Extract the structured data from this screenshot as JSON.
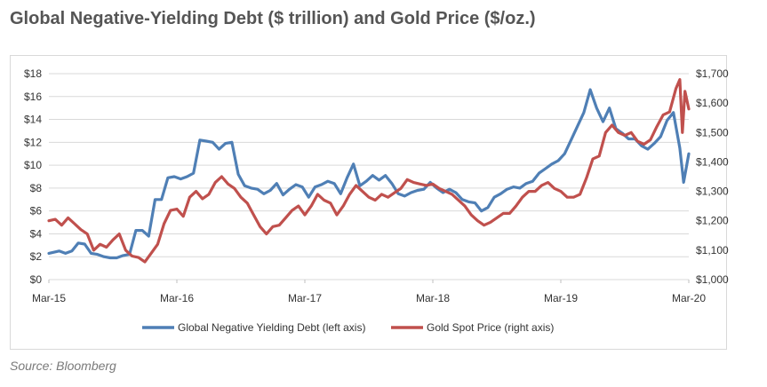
{
  "title": "Global Negative-Yielding Debt ($ trillion) and Gold Price ($/oz.)",
  "source": "Source: Bloomberg",
  "colors": {
    "debt": "#4f7fb5",
    "gold": "#c0504d",
    "grid": "#d9d9d9"
  },
  "chart_data": {
    "type": "line",
    "title": "Global Negative-Yielding Debt ($ trillion) and Gold Price ($/oz.)",
    "x_ticks": [
      "Mar-15",
      "Mar-16",
      "Mar-17",
      "Mar-18",
      "Mar-19",
      "Mar-20"
    ],
    "x_range": [
      2015.17,
      2020.17
    ],
    "left_axis": {
      "label": "",
      "min": 0,
      "max": 18,
      "step": 2,
      "tick_labels": [
        "$0",
        "$2",
        "$4",
        "$6",
        "$8",
        "$10",
        "$12",
        "$14",
        "$16",
        "$18"
      ]
    },
    "right_axis": {
      "label": "",
      "min": 1000,
      "max": 1700,
      "step": 100,
      "tick_labels": [
        "$1,000",
        "$1,100",
        "$1,200",
        "$1,300",
        "$1,400",
        "$1,500",
        "$1,600",
        "$1,700"
      ]
    },
    "grid": true,
    "legend_position": "bottom",
    "series": [
      {
        "name": "Global Negative Yielding Debt (left axis)",
        "axis": "left",
        "x": [
          2015.17,
          2015.25,
          2015.3,
          2015.35,
          2015.4,
          2015.45,
          2015.5,
          2015.55,
          2015.6,
          2015.65,
          2015.7,
          2015.75,
          2015.8,
          2015.85,
          2015.9,
          2015.95,
          2016.0,
          2016.05,
          2016.1,
          2016.15,
          2016.2,
          2016.25,
          2016.3,
          2016.35,
          2016.4,
          2016.45,
          2016.5,
          2016.55,
          2016.6,
          2016.65,
          2016.7,
          2016.75,
          2016.8,
          2016.85,
          2016.9,
          2016.95,
          2017.0,
          2017.05,
          2017.1,
          2017.15,
          2017.2,
          2017.25,
          2017.3,
          2017.35,
          2017.4,
          2017.45,
          2017.5,
          2017.55,
          2017.6,
          2017.65,
          2017.7,
          2017.75,
          2017.8,
          2017.85,
          2017.9,
          2017.95,
          2018.0,
          2018.05,
          2018.1,
          2018.15,
          2018.2,
          2018.25,
          2018.3,
          2018.35,
          2018.4,
          2018.45,
          2018.5,
          2018.55,
          2018.6,
          2018.65,
          2018.7,
          2018.75,
          2018.8,
          2018.85,
          2018.9,
          2018.95,
          2019.0,
          2019.05,
          2019.1,
          2019.15,
          2019.2,
          2019.25,
          2019.3,
          2019.35,
          2019.4,
          2019.45,
          2019.5,
          2019.55,
          2019.6,
          2019.65,
          2019.7,
          2019.75,
          2019.8,
          2019.85,
          2019.9,
          2019.95,
          2020.0,
          2020.05,
          2020.1,
          2020.13,
          2020.17
        ],
        "values": [
          2.3,
          2.5,
          2.3,
          2.5,
          3.2,
          3.1,
          2.3,
          2.2,
          2.0,
          1.9,
          1.9,
          2.1,
          2.2,
          4.3,
          4.3,
          3.8,
          7.0,
          7.0,
          8.9,
          9.0,
          8.8,
          9.0,
          9.3,
          12.2,
          12.1,
          12.0,
          11.4,
          11.9,
          12.0,
          9.2,
          8.2,
          8.0,
          7.9,
          7.5,
          7.8,
          8.4,
          7.4,
          7.9,
          8.3,
          8.1,
          7.2,
          8.1,
          8.3,
          8.6,
          8.4,
          7.5,
          8.9,
          10.1,
          8.2,
          8.6,
          9.1,
          8.7,
          9.1,
          8.4,
          7.5,
          7.3,
          7.6,
          7.8,
          7.9,
          8.5,
          8.0,
          7.6,
          7.9,
          7.6,
          7.0,
          6.8,
          6.7,
          6.0,
          6.3,
          7.2,
          7.5,
          7.9,
          8.1,
          8.0,
          8.4,
          8.6,
          9.3,
          9.7,
          10.1,
          10.4,
          11.0,
          12.2,
          13.4,
          14.6,
          16.6,
          15.0,
          13.8,
          15.0,
          13.2,
          12.8,
          12.3,
          12.3,
          11.7,
          11.4,
          11.9,
          12.5,
          13.9,
          14.6,
          11.5,
          8.5,
          11.0
        ]
      },
      {
        "name": "Gold Spot Price (right axis)",
        "axis": "right",
        "x": [
          2015.17,
          2015.22,
          2015.27,
          2015.32,
          2015.37,
          2015.42,
          2015.47,
          2015.52,
          2015.57,
          2015.62,
          2015.67,
          2015.72,
          2015.77,
          2015.82,
          2015.87,
          2015.92,
          2015.97,
          2016.02,
          2016.07,
          2016.12,
          2016.17,
          2016.22,
          2016.27,
          2016.32,
          2016.37,
          2016.42,
          2016.47,
          2016.52,
          2016.57,
          2016.62,
          2016.67,
          2016.72,
          2016.77,
          2016.82,
          2016.87,
          2016.92,
          2016.97,
          2017.02,
          2017.07,
          2017.12,
          2017.17,
          2017.22,
          2017.27,
          2017.32,
          2017.37,
          2017.42,
          2017.47,
          2017.52,
          2017.57,
          2017.62,
          2017.67,
          2017.72,
          2017.77,
          2017.82,
          2017.87,
          2017.92,
          2017.97,
          2018.02,
          2018.07,
          2018.12,
          2018.17,
          2018.22,
          2018.27,
          2018.32,
          2018.37,
          2018.42,
          2018.47,
          2018.52,
          2018.57,
          2018.62,
          2018.67,
          2018.72,
          2018.77,
          2018.82,
          2018.87,
          2018.92,
          2018.97,
          2019.02,
          2019.07,
          2019.12,
          2019.17,
          2019.22,
          2019.27,
          2019.32,
          2019.37,
          2019.42,
          2019.47,
          2019.52,
          2019.57,
          2019.62,
          2019.67,
          2019.72,
          2019.77,
          2019.82,
          2019.87,
          2019.92,
          2019.97,
          2020.02,
          2020.07,
          2020.1,
          2020.12,
          2020.14,
          2020.17
        ],
        "values": [
          1200,
          1205,
          1185,
          1210,
          1190,
          1170,
          1155,
          1100,
          1120,
          1110,
          1135,
          1155,
          1100,
          1080,
          1075,
          1060,
          1090,
          1120,
          1190,
          1235,
          1240,
          1215,
          1280,
          1300,
          1275,
          1290,
          1330,
          1350,
          1325,
          1310,
          1280,
          1260,
          1220,
          1180,
          1155,
          1180,
          1185,
          1210,
          1235,
          1250,
          1220,
          1250,
          1290,
          1270,
          1260,
          1220,
          1250,
          1290,
          1320,
          1300,
          1280,
          1270,
          1290,
          1280,
          1295,
          1310,
          1340,
          1330,
          1325,
          1320,
          1325,
          1310,
          1300,
          1290,
          1270,
          1250,
          1220,
          1200,
          1185,
          1195,
          1210,
          1225,
          1225,
          1250,
          1280,
          1300,
          1300,
          1320,
          1330,
          1310,
          1300,
          1280,
          1280,
          1290,
          1345,
          1410,
          1420,
          1500,
          1525,
          1500,
          1490,
          1500,
          1470,
          1460,
          1475,
          1520,
          1560,
          1570,
          1650,
          1680,
          1500,
          1640,
          1580
        ]
      }
    ]
  },
  "legend": [
    {
      "label": "Global Negative Yielding Debt (left axis)",
      "color": "#4f7fb5"
    },
    {
      "label": "Gold Spot Price (right axis)",
      "color": "#c0504d"
    }
  ]
}
